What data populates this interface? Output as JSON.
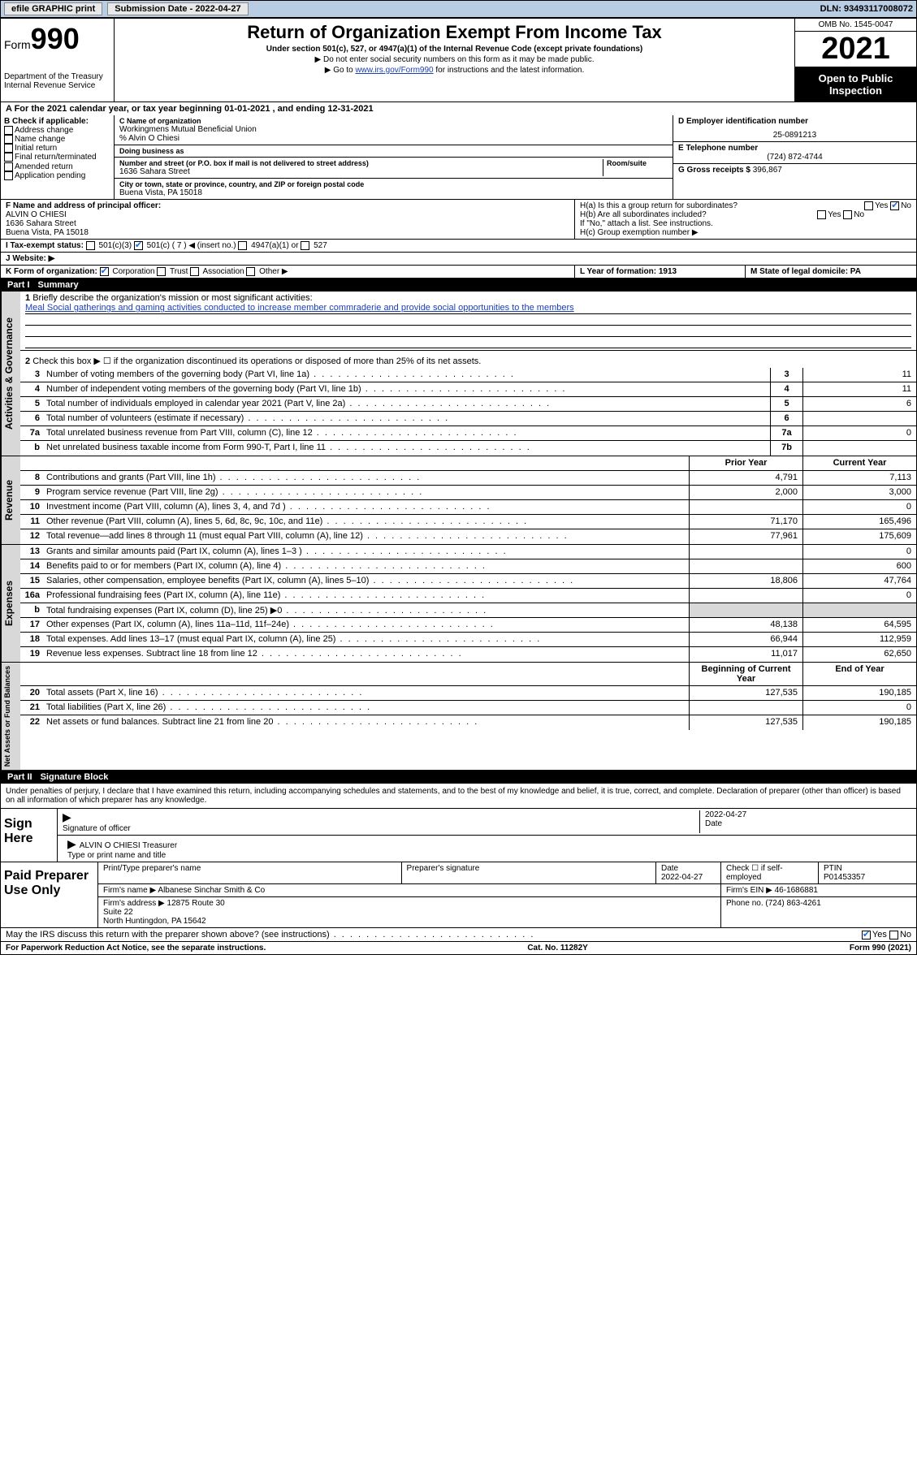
{
  "topbar": {
    "efile_label": "efile GRAPHIC print",
    "submission_label": "Submission Date - 2022-04-27",
    "dln_label": "DLN: 93493117008072"
  },
  "header": {
    "form_prefix": "Form",
    "form_number": "990",
    "dept": "Department of the Treasury\nInternal Revenue Service",
    "title": "Return of Organization Exempt From Income Tax",
    "subtitle": "Under section 501(c), 527, or 4947(a)(1) of the Internal Revenue Code (except private foundations)",
    "note1": "▶ Do not enter social security numbers on this form as it may be made public.",
    "note2_pre": "▶ Go to ",
    "note2_link": "www.irs.gov/Form990",
    "note2_post": " for instructions and the latest information.",
    "omb": "OMB No. 1545-0047",
    "year": "2021",
    "open_public": "Open to Public Inspection"
  },
  "period": {
    "text": "A For the 2021 calendar year, or tax year beginning 01-01-2021  , and ending 12-31-2021"
  },
  "boxB": {
    "title": "B Check if applicable:",
    "items": [
      "Address change",
      "Name change",
      "Initial return",
      "Final return/terminated",
      "Amended return",
      "Application pending"
    ]
  },
  "boxC": {
    "name_label": "C Name of organization",
    "name": "Workingmens Mutual Beneficial Union",
    "care_of": "% Alvin O Chiesi",
    "dba_label": "Doing business as",
    "street_label": "Number and street (or P.O. box if mail is not delivered to street address)",
    "room_label": "Room/suite",
    "street": "1636 Sahara Street",
    "city_label": "City or town, state or province, country, and ZIP or foreign postal code",
    "city": "Buena Vista, PA  15018"
  },
  "boxD": {
    "ein_label": "D Employer identification number",
    "ein": "25-0891213",
    "phone_label": "E Telephone number",
    "phone": "(724) 872-4744",
    "gross_label": "G Gross receipts $",
    "gross": "396,867"
  },
  "boxF": {
    "label": "F  Name and address of principal officer:",
    "name": "ALVIN O CHIESI",
    "street": "1636 Sahara Street",
    "city": "Buena Vista, PA  15018"
  },
  "boxH": {
    "a": "H(a)  Is this a group return for subordinates?",
    "b": "H(b)  Are all subordinates included?",
    "b_note": "If \"No,\" attach a list. See instructions.",
    "c": "H(c)  Group exemption number ▶",
    "yes": "Yes",
    "no": "No"
  },
  "boxI": {
    "label": "I  Tax-exempt status:",
    "opts": [
      "501(c)(3)",
      "501(c) ( 7 ) ◀ (insert no.)",
      "4947(a)(1) or",
      "527"
    ]
  },
  "boxJ": {
    "label": "J  Website: ▶"
  },
  "boxK": {
    "label": "K Form of organization:",
    "opts": [
      "Corporation",
      "Trust",
      "Association",
      "Other ▶"
    ]
  },
  "boxL": {
    "label": "L Year of formation: 1913"
  },
  "boxM": {
    "label": "M State of legal domicile: PA"
  },
  "part1": {
    "num": "Part I",
    "title": "Summary"
  },
  "summary": {
    "q1_label": "Briefly describe the organization's mission or most significant activities:",
    "q1_text": "Meal Social gatherings and gaming activities conducted to increase member commraderie and provide social opportunities to the members",
    "q2": "Check this box ▶ ☐  if the organization discontinued its operations or disposed of more than 25% of its net assets.",
    "lines_gov": [
      {
        "n": "3",
        "d": "Number of voting members of the governing body (Part VI, line 1a)",
        "c": "3",
        "v": "11"
      },
      {
        "n": "4",
        "d": "Number of independent voting members of the governing body (Part VI, line 1b)",
        "c": "4",
        "v": "11"
      },
      {
        "n": "5",
        "d": "Total number of individuals employed in calendar year 2021 (Part V, line 2a)",
        "c": "5",
        "v": "6"
      },
      {
        "n": "6",
        "d": "Total number of volunteers (estimate if necessary)",
        "c": "6",
        "v": ""
      },
      {
        "n": "7a",
        "d": "Total unrelated business revenue from Part VIII, column (C), line 12",
        "c": "7a",
        "v": "0"
      },
      {
        "n": "b",
        "d": "Net unrelated business taxable income from Form 990-T, Part I, line 11",
        "c": "7b",
        "v": ""
      }
    ],
    "col_prior": "Prior Year",
    "col_current": "Current Year",
    "revenue": [
      {
        "n": "8",
        "d": "Contributions and grants (Part VIII, line 1h)",
        "p": "4,791",
        "c": "7,113"
      },
      {
        "n": "9",
        "d": "Program service revenue (Part VIII, line 2g)",
        "p": "2,000",
        "c": "3,000"
      },
      {
        "n": "10",
        "d": "Investment income (Part VIII, column (A), lines 3, 4, and 7d )",
        "p": "",
        "c": "0"
      },
      {
        "n": "11",
        "d": "Other revenue (Part VIII, column (A), lines 5, 6d, 8c, 9c, 10c, and 11e)",
        "p": "71,170",
        "c": "165,496"
      },
      {
        "n": "12",
        "d": "Total revenue—add lines 8 through 11 (must equal Part VIII, column (A), line 12)",
        "p": "77,961",
        "c": "175,609"
      }
    ],
    "expenses": [
      {
        "n": "13",
        "d": "Grants and similar amounts paid (Part IX, column (A), lines 1–3 )",
        "p": "",
        "c": "0"
      },
      {
        "n": "14",
        "d": "Benefits paid to or for members (Part IX, column (A), line 4)",
        "p": "",
        "c": "600"
      },
      {
        "n": "15",
        "d": "Salaries, other compensation, employee benefits (Part IX, column (A), lines 5–10)",
        "p": "18,806",
        "c": "47,764"
      },
      {
        "n": "16a",
        "d": "Professional fundraising fees (Part IX, column (A), line 11e)",
        "p": "",
        "c": "0"
      },
      {
        "n": "b",
        "d": "Total fundraising expenses (Part IX, column (D), line 25) ▶0",
        "p": "grey",
        "c": "grey"
      },
      {
        "n": "17",
        "d": "Other expenses (Part IX, column (A), lines 11a–11d, 11f–24e)",
        "p": "48,138",
        "c": "64,595"
      },
      {
        "n": "18",
        "d": "Total expenses. Add lines 13–17 (must equal Part IX, column (A), line 25)",
        "p": "66,944",
        "c": "112,959"
      },
      {
        "n": "19",
        "d": "Revenue less expenses. Subtract line 18 from line 12",
        "p": "11,017",
        "c": "62,650"
      }
    ],
    "col_begin": "Beginning of Current Year",
    "col_end": "End of Year",
    "netassets": [
      {
        "n": "20",
        "d": "Total assets (Part X, line 16)",
        "p": "127,535",
        "c": "190,185"
      },
      {
        "n": "21",
        "d": "Total liabilities (Part X, line 26)",
        "p": "",
        "c": "0"
      },
      {
        "n": "22",
        "d": "Net assets or fund balances. Subtract line 21 from line 20",
        "p": "127,535",
        "c": "190,185"
      }
    ]
  },
  "part2": {
    "num": "Part II",
    "title": "Signature Block"
  },
  "sig": {
    "intro": "Under penalties of perjury, I declare that I have examined this return, including accompanying schedules and statements, and to the best of my knowledge and belief, it is true, correct, and complete. Declaration of preparer (other than officer) is based on all information of which preparer has any knowledge.",
    "sign_here": "Sign Here",
    "sig_officer": "Signature of officer",
    "date_label": "Date",
    "date_val": "2022-04-27",
    "name_title": "ALVIN O CHIESI Treasurer",
    "type_name": "Type or print name and title"
  },
  "prep": {
    "label": "Paid Preparer Use Only",
    "cols": [
      "Print/Type preparer's name",
      "Preparer's signature",
      "Date",
      "",
      "PTIN"
    ],
    "date": "2022-04-27",
    "check_label": "Check ☐ if self-employed",
    "ptin": "P01453357",
    "firm_name_label": "Firm's name    ▶",
    "firm_name": "Albanese Sinchar Smith & Co",
    "firm_ein_label": "Firm's EIN ▶",
    "firm_ein": "46-1686881",
    "firm_addr_label": "Firm's address ▶",
    "firm_addr": "12875 Route 30\nSuite 22\nNorth Huntingdon, PA  15642",
    "firm_phone_label": "Phone no.",
    "firm_phone": "(724) 863-4261"
  },
  "may_irs": {
    "q": "May the IRS discuss this return with the preparer shown above? (see instructions)",
    "yes": "Yes",
    "no": "No"
  },
  "footer": {
    "left": "For Paperwork Reduction Act Notice, see the separate instructions.",
    "mid": "Cat. No. 11282Y",
    "right": "Form 990 (2021)"
  },
  "vlabels": {
    "gov": "Activities & Governance",
    "rev": "Revenue",
    "exp": "Expenses",
    "net": "Net Assets or Fund Balances"
  }
}
